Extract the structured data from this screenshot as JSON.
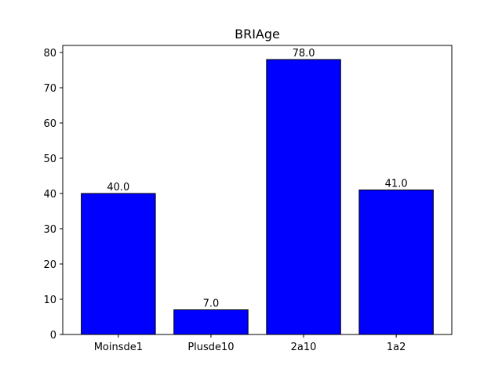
{
  "chart_data": {
    "type": "bar",
    "title": "BRIAge",
    "xlabel": "",
    "ylabel": "",
    "categories": [
      "Moinsde1",
      "Plusde10",
      "2a10",
      "1a2"
    ],
    "values": [
      40.0,
      7.0,
      78.0,
      41.0
    ],
    "value_labels": [
      "40.0",
      "7.0",
      "78.0",
      "41.0"
    ],
    "ylim": [
      0,
      82
    ],
    "yticks": [
      0,
      10,
      20,
      30,
      40,
      50,
      60,
      70,
      80
    ],
    "grid": false,
    "bar_color": "#0000ff",
    "edge_color": "#000000"
  }
}
